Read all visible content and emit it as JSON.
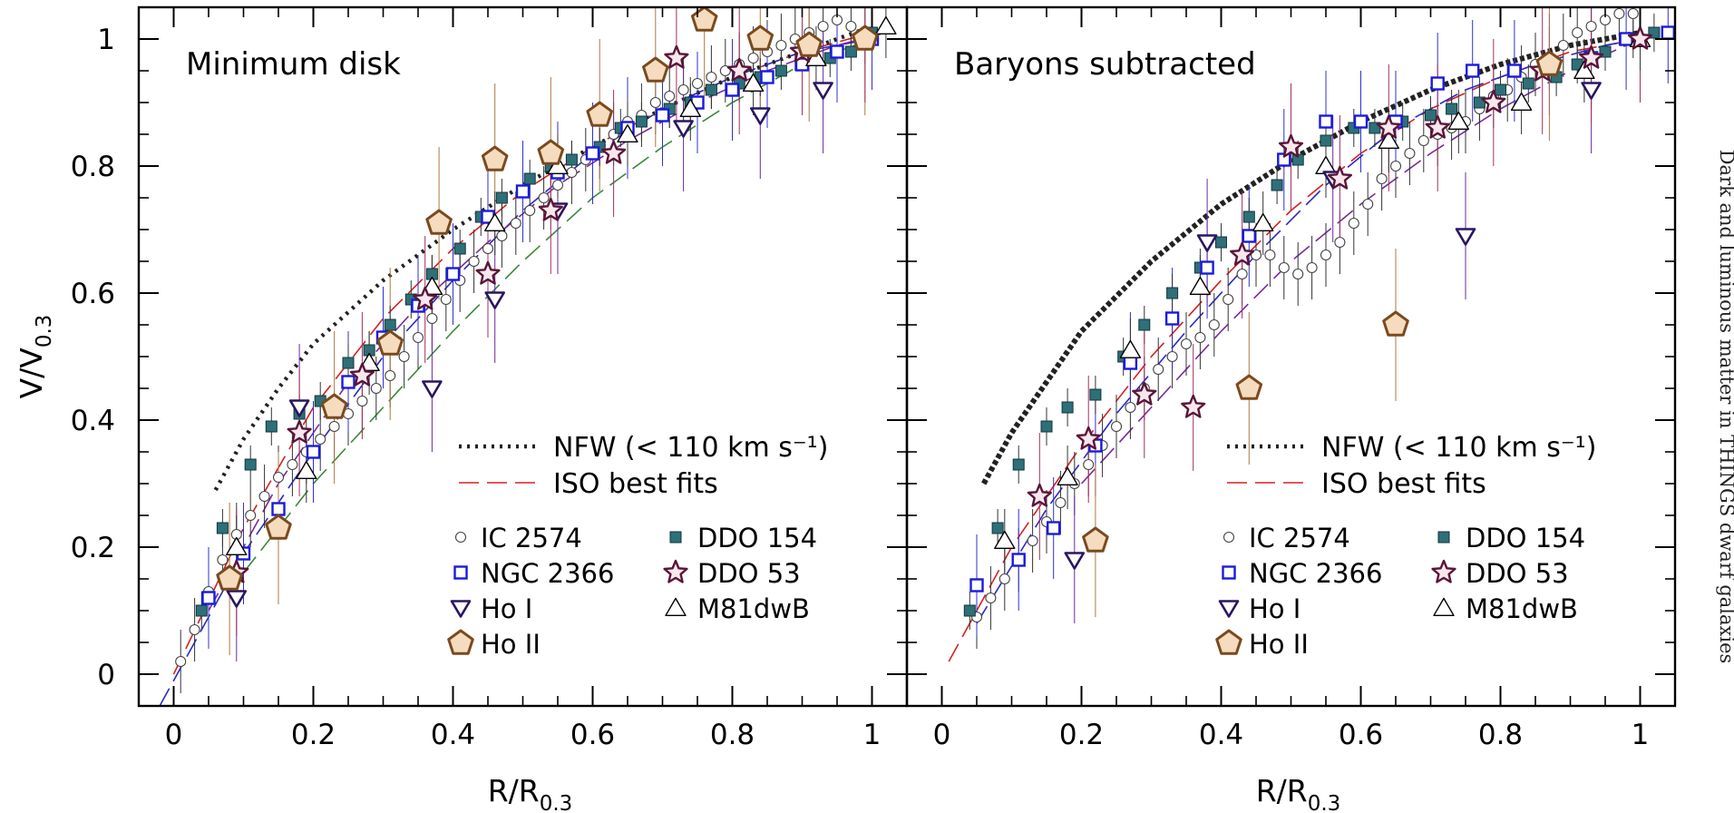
{
  "figure": {
    "side_caption": "Dark and luminous matter in THINGS dwarf galaxies",
    "y_label": "V/V",
    "y_label_sub": "0.3",
    "x_label": "R/R",
    "x_label_sub": "0.3"
  },
  "colors": {
    "axis": "#000000",
    "nfw": "#222222",
    "iso_fit": "#d62020",
    "IC 2574": "#444444",
    "NGC 2366": "#1a1ae0",
    "Ho I": "#2a1660",
    "Ho II": "#7a4a1e",
    "Ho II fill": "#f6dcbe",
    "DDO 154": "#2f6f78",
    "DDO 53": "#5a1538",
    "DDO 53 fill": "#f8e8ee",
    "M81dwB": "#000000",
    "errorbar_icon": "#333333",
    "errorbar_ngc": "#3030d0",
    "errorbar_hoi": "#6a2aa0",
    "errorbar_hoii": "#b07840",
    "errorbar_ddo53": "#a03060"
  },
  "chart_data": [
    {
      "type": "scatter",
      "panel_title": "Minimum disk",
      "xlabel": "R/R0.3",
      "ylabel": "V/V0.3",
      "xlim": [
        -0.05,
        1.05
      ],
      "ylim": [
        -0.05,
        1.05
      ],
      "xticks": [
        "0",
        "0.2",
        "0.4",
        "0.6",
        "0.8",
        "1"
      ],
      "yticks": [
        "0",
        "0.2",
        "0.4",
        "0.6",
        "0.8",
        "1"
      ],
      "legend_lines": [
        {
          "label": "NFW (< 110 km s⁻¹)",
          "style": "dotted"
        },
        {
          "label": "ISO best fits",
          "style": "dashed"
        }
      ],
      "legend_markers": [
        {
          "label": "IC 2574",
          "marker": "circle"
        },
        {
          "label": "NGC 2366",
          "marker": "square"
        },
        {
          "label": "Ho I",
          "marker": "triangle-down"
        },
        {
          "label": "Ho II",
          "marker": "pentagon"
        },
        {
          "label": "DDO 154",
          "marker": "filled-square"
        },
        {
          "label": "DDO 53",
          "marker": "star"
        },
        {
          "label": "M81dwB",
          "marker": "triangle-up"
        }
      ],
      "nfw": {
        "x": [
          0.06,
          0.1,
          0.15,
          0.2,
          0.3,
          0.4,
          0.5,
          0.6,
          0.7,
          0.8,
          0.9,
          1.0
        ],
        "y": [
          0.29,
          0.37,
          0.45,
          0.52,
          0.62,
          0.7,
          0.77,
          0.83,
          0.89,
          0.94,
          0.98,
          1.02
        ]
      },
      "iso_fits": [
        {
          "x": [
            0.0,
            0.1,
            0.2,
            0.3,
            0.4,
            0.5,
            0.6,
            0.7,
            0.8,
            0.9,
            1.0
          ],
          "y": [
            0.0,
            0.23,
            0.42,
            0.56,
            0.67,
            0.76,
            0.83,
            0.89,
            0.94,
            0.98,
            1.01
          ]
        },
        {
          "x": [
            -0.02,
            0.1,
            0.2,
            0.3,
            0.4,
            0.5,
            0.6,
            0.7,
            0.8,
            0.9,
            1.0
          ],
          "y": [
            -0.05,
            0.19,
            0.35,
            0.5,
            0.62,
            0.73,
            0.82,
            0.89,
            0.94,
            0.98,
            1.0
          ]
        },
        {
          "x": [
            0.05,
            0.15,
            0.25,
            0.35,
            0.45,
            0.55,
            0.65,
            0.75,
            0.85,
            0.95,
            1.02
          ],
          "y": [
            0.1,
            0.3,
            0.46,
            0.58,
            0.68,
            0.77,
            0.84,
            0.9,
            0.95,
            0.99,
            1.01
          ]
        },
        {
          "x": [
            0.1,
            0.2,
            0.3,
            0.4,
            0.5,
            0.6,
            0.7,
            0.8,
            0.9,
            1.0
          ],
          "y": [
            0.16,
            0.3,
            0.42,
            0.54,
            0.65,
            0.75,
            0.83,
            0.9,
            0.96,
            1.0
          ]
        }
      ],
      "series": [
        {
          "name": "IC 2574",
          "x": [
            0.01,
            0.03,
            0.05,
            0.07,
            0.09,
            0.11,
            0.13,
            0.15,
            0.17,
            0.19,
            0.21,
            0.23,
            0.25,
            0.27,
            0.29,
            0.31,
            0.33,
            0.35,
            0.37,
            0.39,
            0.41,
            0.43,
            0.45,
            0.47,
            0.49,
            0.51,
            0.53,
            0.55,
            0.57,
            0.59,
            0.61,
            0.63,
            0.65,
            0.67,
            0.69,
            0.71,
            0.73,
            0.75,
            0.77,
            0.79,
            0.81,
            0.83,
            0.85,
            0.87,
            0.89,
            0.91,
            0.93,
            0.95,
            0.97,
            0.99
          ],
          "y": [
            0.02,
            0.07,
            0.13,
            0.18,
            0.22,
            0.25,
            0.28,
            0.31,
            0.33,
            0.35,
            0.37,
            0.39,
            0.41,
            0.43,
            0.45,
            0.47,
            0.5,
            0.53,
            0.56,
            0.59,
            0.62,
            0.65,
            0.67,
            0.69,
            0.71,
            0.73,
            0.75,
            0.77,
            0.79,
            0.81,
            0.83,
            0.85,
            0.87,
            0.88,
            0.9,
            0.91,
            0.92,
            0.93,
            0.94,
            0.95,
            0.96,
            0.97,
            0.98,
            0.99,
            1.0,
            1.01,
            1.02,
            1.03,
            1.02,
            1.01
          ]
        },
        {
          "name": "NGC 2366",
          "x": [
            0.05,
            0.1,
            0.15,
            0.2,
            0.25,
            0.3,
            0.35,
            0.4,
            0.45,
            0.5,
            0.55,
            0.6,
            0.65,
            0.7,
            0.75,
            0.8,
            0.85,
            0.9,
            0.95,
            1.0
          ],
          "y": [
            0.12,
            0.19,
            0.26,
            0.35,
            0.46,
            0.53,
            0.58,
            0.63,
            0.72,
            0.76,
            0.79,
            0.82,
            0.86,
            0.88,
            0.9,
            0.92,
            0.94,
            0.96,
            0.98,
            1.0
          ]
        },
        {
          "name": "Ho I",
          "x": [
            0.09,
            0.18,
            0.37,
            0.46,
            0.55,
            0.73,
            0.84,
            0.93
          ],
          "y": [
            0.12,
            0.42,
            0.45,
            0.59,
            0.73,
            0.86,
            0.88,
            0.92
          ]
        },
        {
          "name": "Ho II",
          "x": [
            0.08,
            0.15,
            0.23,
            0.31,
            0.38,
            0.46,
            0.54,
            0.61,
            0.69,
            0.76,
            0.84,
            0.91,
            0.99
          ],
          "y": [
            0.15,
            0.23,
            0.42,
            0.52,
            0.71,
            0.81,
            0.82,
            0.88,
            0.95,
            1.03,
            1.0,
            0.99,
            1.0
          ]
        },
        {
          "name": "DDO 154",
          "x": [
            0.04,
            0.07,
            0.11,
            0.14,
            0.18,
            0.21,
            0.25,
            0.28,
            0.31,
            0.34,
            0.37,
            0.41,
            0.44,
            0.47,
            0.51,
            0.54,
            0.57,
            0.61,
            0.64,
            0.67,
            0.71,
            0.74,
            0.77,
            0.81,
            0.84,
            0.87,
            0.9,
            0.94,
            0.97,
            1.0
          ],
          "y": [
            0.1,
            0.23,
            0.33,
            0.39,
            0.41,
            0.43,
            0.49,
            0.51,
            0.55,
            0.59,
            0.63,
            0.67,
            0.72,
            0.75,
            0.78,
            0.8,
            0.81,
            0.83,
            0.86,
            0.87,
            0.89,
            0.9,
            0.92,
            0.93,
            0.94,
            0.95,
            0.96,
            0.97,
            0.98,
            1.01
          ]
        },
        {
          "name": "DDO 53",
          "x": [
            0.09,
            0.18,
            0.27,
            0.36,
            0.45,
            0.54,
            0.63,
            0.72,
            0.81,
            0.9,
            0.99
          ],
          "y": [
            0.16,
            0.38,
            0.47,
            0.59,
            0.63,
            0.73,
            0.82,
            0.97,
            0.95,
            0.98,
            1.0
          ]
        },
        {
          "name": "M81dwB",
          "x": [
            0.09,
            0.19,
            0.28,
            0.37,
            0.46,
            0.55,
            0.65,
            0.74,
            0.83,
            0.92,
            1.02
          ],
          "y": [
            0.2,
            0.32,
            0.49,
            0.61,
            0.71,
            0.8,
            0.85,
            0.89,
            0.93,
            0.97,
            1.02
          ]
        }
      ]
    },
    {
      "type": "scatter",
      "panel_title": "Baryons subtracted",
      "xlabel": "R/R0.3",
      "ylabel": "V/V0.3",
      "xlim": [
        -0.05,
        1.05
      ],
      "ylim": [
        -0.05,
        1.05
      ],
      "xticks": [
        "0",
        "0.2",
        "0.4",
        "0.6",
        "0.8",
        "1"
      ],
      "yticks": [
        "0",
        "0.2",
        "0.4",
        "0.6",
        "0.8",
        "1"
      ],
      "legend_lines": [
        {
          "label": "NFW (< 110 km s⁻¹)",
          "style": "dotted"
        },
        {
          "label": "ISO best fits",
          "style": "dashed"
        }
      ],
      "legend_markers": [
        {
          "label": "IC 2574",
          "marker": "circle"
        },
        {
          "label": "NGC 2366",
          "marker": "square"
        },
        {
          "label": "Ho I",
          "marker": "triangle-down"
        },
        {
          "label": "Ho II",
          "marker": "pentagon"
        },
        {
          "label": "DDO 154",
          "marker": "filled-square"
        },
        {
          "label": "DDO 53",
          "marker": "star"
        },
        {
          "label": "M81dwB",
          "marker": "triangle-up"
        }
      ],
      "nfw": {
        "x": [
          0.06,
          0.1,
          0.15,
          0.2,
          0.3,
          0.4,
          0.5,
          0.6,
          0.7,
          0.8,
          0.9,
          1.0
        ],
        "y": [
          0.3,
          0.38,
          0.46,
          0.54,
          0.65,
          0.74,
          0.81,
          0.87,
          0.92,
          0.96,
          0.99,
          1.01
        ]
      },
      "iso_fits": [
        {
          "x": [
            0.01,
            0.1,
            0.2,
            0.3,
            0.4,
            0.5,
            0.6,
            0.7,
            0.8,
            0.9,
            1.0
          ],
          "y": [
            0.02,
            0.2,
            0.36,
            0.5,
            0.62,
            0.73,
            0.82,
            0.89,
            0.94,
            0.98,
            1.0
          ]
        },
        {
          "x": [
            0.05,
            0.15,
            0.25,
            0.35,
            0.45,
            0.55,
            0.65,
            0.75,
            0.85,
            0.95,
            1.0
          ],
          "y": [
            0.08,
            0.26,
            0.41,
            0.54,
            0.66,
            0.77,
            0.86,
            0.92,
            0.96,
            0.99,
            1.0
          ]
        },
        {
          "x": [
            0.2,
            0.3,
            0.4,
            0.5,
            0.6,
            0.7,
            0.8,
            0.9,
            1.0
          ],
          "y": [
            0.3,
            0.42,
            0.54,
            0.65,
            0.74,
            0.82,
            0.89,
            0.95,
            1.0
          ]
        }
      ],
      "series": [
        {
          "name": "IC 2574",
          "x": [
            0.05,
            0.07,
            0.09,
            0.11,
            0.13,
            0.15,
            0.17,
            0.19,
            0.21,
            0.23,
            0.25,
            0.27,
            0.29,
            0.31,
            0.33,
            0.35,
            0.37,
            0.39,
            0.41,
            0.43,
            0.45,
            0.47,
            0.49,
            0.51,
            0.53,
            0.55,
            0.57,
            0.59,
            0.61,
            0.63,
            0.65,
            0.67,
            0.69,
            0.71,
            0.73,
            0.75,
            0.77,
            0.79,
            0.81,
            0.83,
            0.85,
            0.87,
            0.89,
            0.91,
            0.93,
            0.95,
            0.97,
            0.99
          ],
          "y": [
            0.09,
            0.12,
            0.15,
            0.18,
            0.21,
            0.24,
            0.27,
            0.3,
            0.33,
            0.36,
            0.39,
            0.42,
            0.45,
            0.48,
            0.5,
            0.52,
            0.53,
            0.55,
            0.59,
            0.63,
            0.66,
            0.66,
            0.64,
            0.63,
            0.64,
            0.66,
            0.68,
            0.71,
            0.74,
            0.78,
            0.8,
            0.82,
            0.84,
            0.85,
            0.86,
            0.87,
            0.89,
            0.91,
            0.92,
            0.94,
            0.96,
            0.97,
            0.99,
            1.01,
            1.02,
            1.03,
            1.04,
            1.04
          ]
        },
        {
          "name": "NGC 2366",
          "x": [
            0.05,
            0.11,
            0.16,
            0.22,
            0.27,
            0.33,
            0.38,
            0.44,
            0.49,
            0.55,
            0.6,
            0.65,
            0.71,
            0.76,
            0.82,
            0.87,
            0.93,
            0.98,
            1.04
          ],
          "y": [
            0.14,
            0.18,
            0.23,
            0.36,
            0.49,
            0.56,
            0.64,
            0.69,
            0.81,
            0.87,
            0.87,
            0.87,
            0.93,
            0.95,
            0.95,
            0.96,
            0.97,
            1.0,
            1.01
          ]
        },
        {
          "name": "Ho I",
          "x": [
            0.19,
            0.38,
            0.56,
            0.75,
            0.93
          ],
          "y": [
            0.18,
            0.68,
            0.78,
            0.69,
            0.92
          ]
        },
        {
          "name": "Ho II",
          "x": [
            0.22,
            0.44,
            0.65,
            0.87
          ],
          "y": [
            0.21,
            0.45,
            0.55,
            0.96
          ]
        },
        {
          "name": "DDO 154",
          "x": [
            0.04,
            0.08,
            0.11,
            0.15,
            0.18,
            0.22,
            0.26,
            0.29,
            0.33,
            0.37,
            0.4,
            0.44,
            0.48,
            0.51,
            0.55,
            0.59,
            0.62,
            0.66,
            0.7,
            0.73,
            0.77,
            0.8,
            0.84,
            0.88,
            0.91,
            0.95,
            0.99,
            1.02
          ],
          "y": [
            0.1,
            0.23,
            0.33,
            0.39,
            0.42,
            0.44,
            0.5,
            0.55,
            0.6,
            0.64,
            0.68,
            0.72,
            0.77,
            0.81,
            0.84,
            0.86,
            0.86,
            0.87,
            0.88,
            0.89,
            0.9,
            0.92,
            0.93,
            0.94,
            0.96,
            0.98,
            1.0,
            1.01
          ]
        },
        {
          "name": "DDO 53",
          "x": [
            0.14,
            0.21,
            0.29,
            0.36,
            0.43,
            0.5,
            0.57,
            0.64,
            0.71,
            0.79,
            0.86,
            0.93,
            1.0
          ],
          "y": [
            0.28,
            0.37,
            0.44,
            0.42,
            0.66,
            0.83,
            0.78,
            0.86,
            0.86,
            0.9,
            0.95,
            0.97,
            1.0
          ]
        },
        {
          "name": "M81dwB",
          "x": [
            0.09,
            0.18,
            0.27,
            0.37,
            0.46,
            0.55,
            0.64,
            0.74,
            0.83,
            0.92,
            1.0
          ],
          "y": [
            0.21,
            0.31,
            0.51,
            0.61,
            0.71,
            0.8,
            0.84,
            0.87,
            0.9,
            0.95,
            1.0
          ]
        }
      ]
    }
  ]
}
